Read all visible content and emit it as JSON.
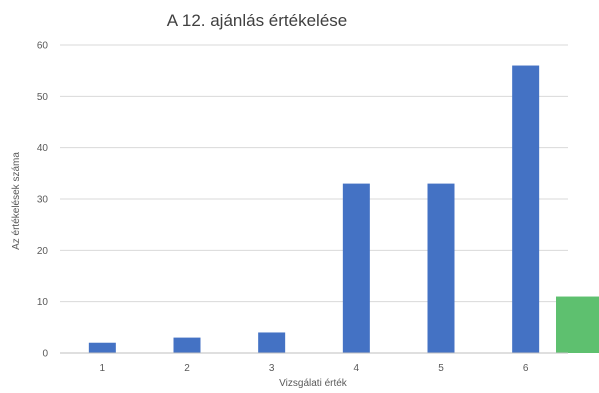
{
  "chart_data": {
    "type": "bar",
    "title": "A 12. ajánlás értékelése",
    "xlabel": "Vizsgálati érték",
    "ylabel": "Az értékelések száma",
    "categories": [
      "1",
      "2",
      "3",
      "4",
      "5",
      "6"
    ],
    "values": [
      2,
      3,
      4,
      33,
      33,
      56
    ],
    "extra_value": 11,
    "ylim": [
      0,
      60
    ],
    "yticks": [
      "0",
      "10",
      "20",
      "30",
      "40",
      "50",
      "60"
    ],
    "grid": true,
    "legend": "none",
    "colors": {
      "bar": "#4472C4",
      "extra_bar": "#5EC06F",
      "grid": "#D9D9D9",
      "axis": "#BFBFBF"
    }
  }
}
